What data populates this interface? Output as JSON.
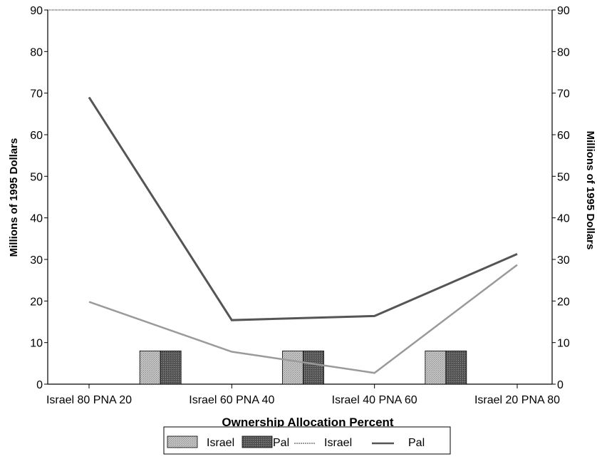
{
  "chart_data": {
    "type": "bar",
    "categories": [
      "Israel 80 PNA 20",
      "Israel 60 PNA 40",
      "Israel 40 PNA 60",
      "Israel 20 PNA 80"
    ],
    "xlabel": "Ownership Allocation Percent",
    "ylabel": "Millions of 1995 Dollars",
    "y2label": "Millions of 1995 Dollars",
    "ylim": [
      0,
      90
    ],
    "y2lim": [
      0,
      90
    ],
    "yticks": [
      0,
      10,
      20,
      30,
      40,
      50,
      60,
      70,
      80,
      90
    ],
    "grid": false,
    "legend_position": "bottom",
    "bar_series": [
      {
        "name": "Israel",
        "values": [
          8,
          8,
          8
        ],
        "positions": [
          0.5,
          1.5,
          2.5
        ]
      },
      {
        "name": "Pal",
        "values": [
          8,
          8,
          8
        ],
        "positions": [
          0.5,
          1.5,
          2.5
        ]
      }
    ],
    "line_series": [
      {
        "name": "Israel",
        "values": [
          19.8,
          7.8,
          2.7,
          28.7
        ]
      },
      {
        "name": "Pal",
        "values": [
          69.0,
          15.4,
          16.4,
          31.3
        ]
      }
    ],
    "colors": {
      "bar_israel": "#b8b8b8",
      "bar_pal": "#555555",
      "line_israel": "#9a9a9a",
      "line_pal": "#555555"
    }
  }
}
